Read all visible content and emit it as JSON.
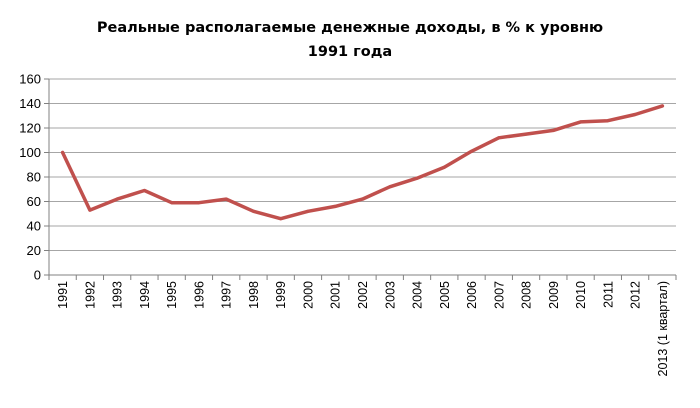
{
  "chart_data": {
    "type": "line",
    "title_lines": [
      "Реальные располагаемые денежные доходы, в % к уровню",
      "1991 года"
    ],
    "xlabel": "",
    "ylabel": "",
    "categories": [
      "1991",
      "1992",
      "1993",
      "1994",
      "1995",
      "1996",
      "1997",
      "1998",
      "1999",
      "2000",
      "2001",
      "2002",
      "2003",
      "2004",
      "2005",
      "2006",
      "2007",
      "2008",
      "2009",
      "2010",
      "2011",
      "2012",
      "2013 (1 квартал)"
    ],
    "series": [
      {
        "values": [
          100,
          53,
          62,
          69,
          59,
          59,
          62,
          52,
          46,
          52,
          56,
          62,
          72,
          79,
          88,
          101,
          112,
          115,
          118,
          125,
          126,
          131,
          138
        ],
        "color": "#c0504d"
      }
    ],
    "yticks": [
      "0",
      "20",
      "40",
      "60",
      "80",
      "100",
      "120",
      "140",
      "160"
    ],
    "ylim": [
      0,
      160
    ],
    "grid": true,
    "legend": "none"
  }
}
